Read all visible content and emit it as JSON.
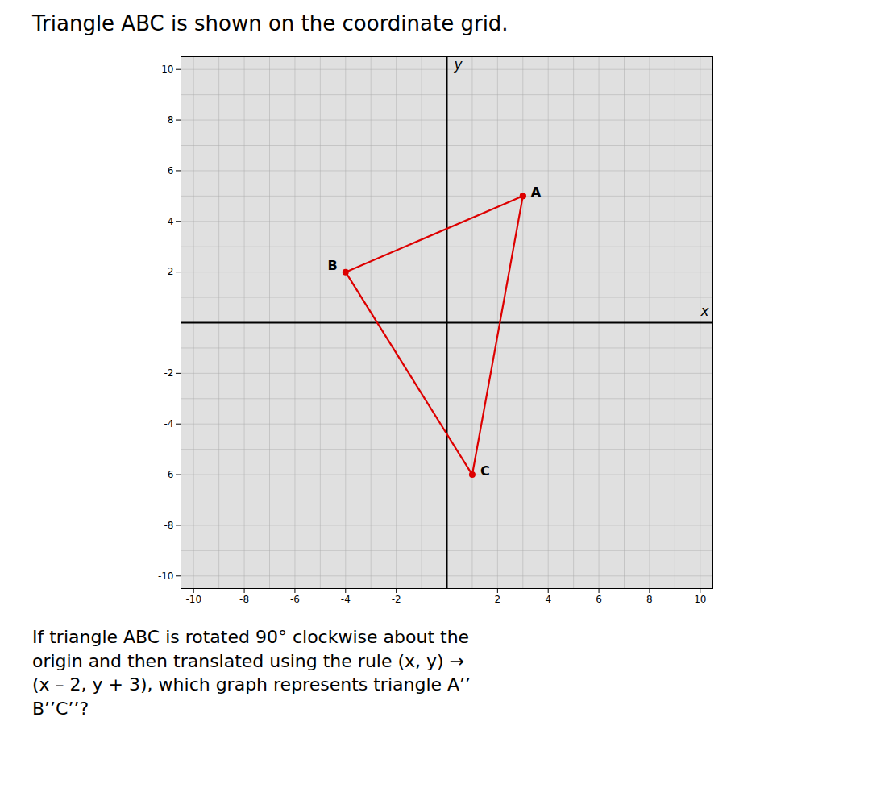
{
  "chart_data": {
    "type": "line",
    "title": "Triangle ABC is shown on the coordinate grid.",
    "caption": [
      "If triangle ABC is rotated 90° clockwise about the",
      "origin and then translated using the rule (x, y) →",
      "(x – 2, y + 3), which graph represents triangle A’’",
      "B’’C’’?"
    ],
    "x_label": "x",
    "y_label": "y",
    "x": [
      3,
      -4,
      1,
      3
    ],
    "values": [
      5,
      2,
      -6,
      5
    ],
    "point_labels": [
      "A",
      "B",
      "C",
      null
    ],
    "color": "#dd0000",
    "marker": "o",
    "xlim": [
      -10.5,
      10.5
    ],
    "ylim": [
      -10.5,
      10.5
    ],
    "xticks": [
      -10,
      -8,
      -6,
      -4,
      -2,
      2,
      4,
      6,
      8,
      10
    ],
    "yticks": [
      -10,
      -8,
      -6,
      -4,
      -2,
      2,
      4,
      6,
      8,
      10
    ],
    "grid": true
  }
}
